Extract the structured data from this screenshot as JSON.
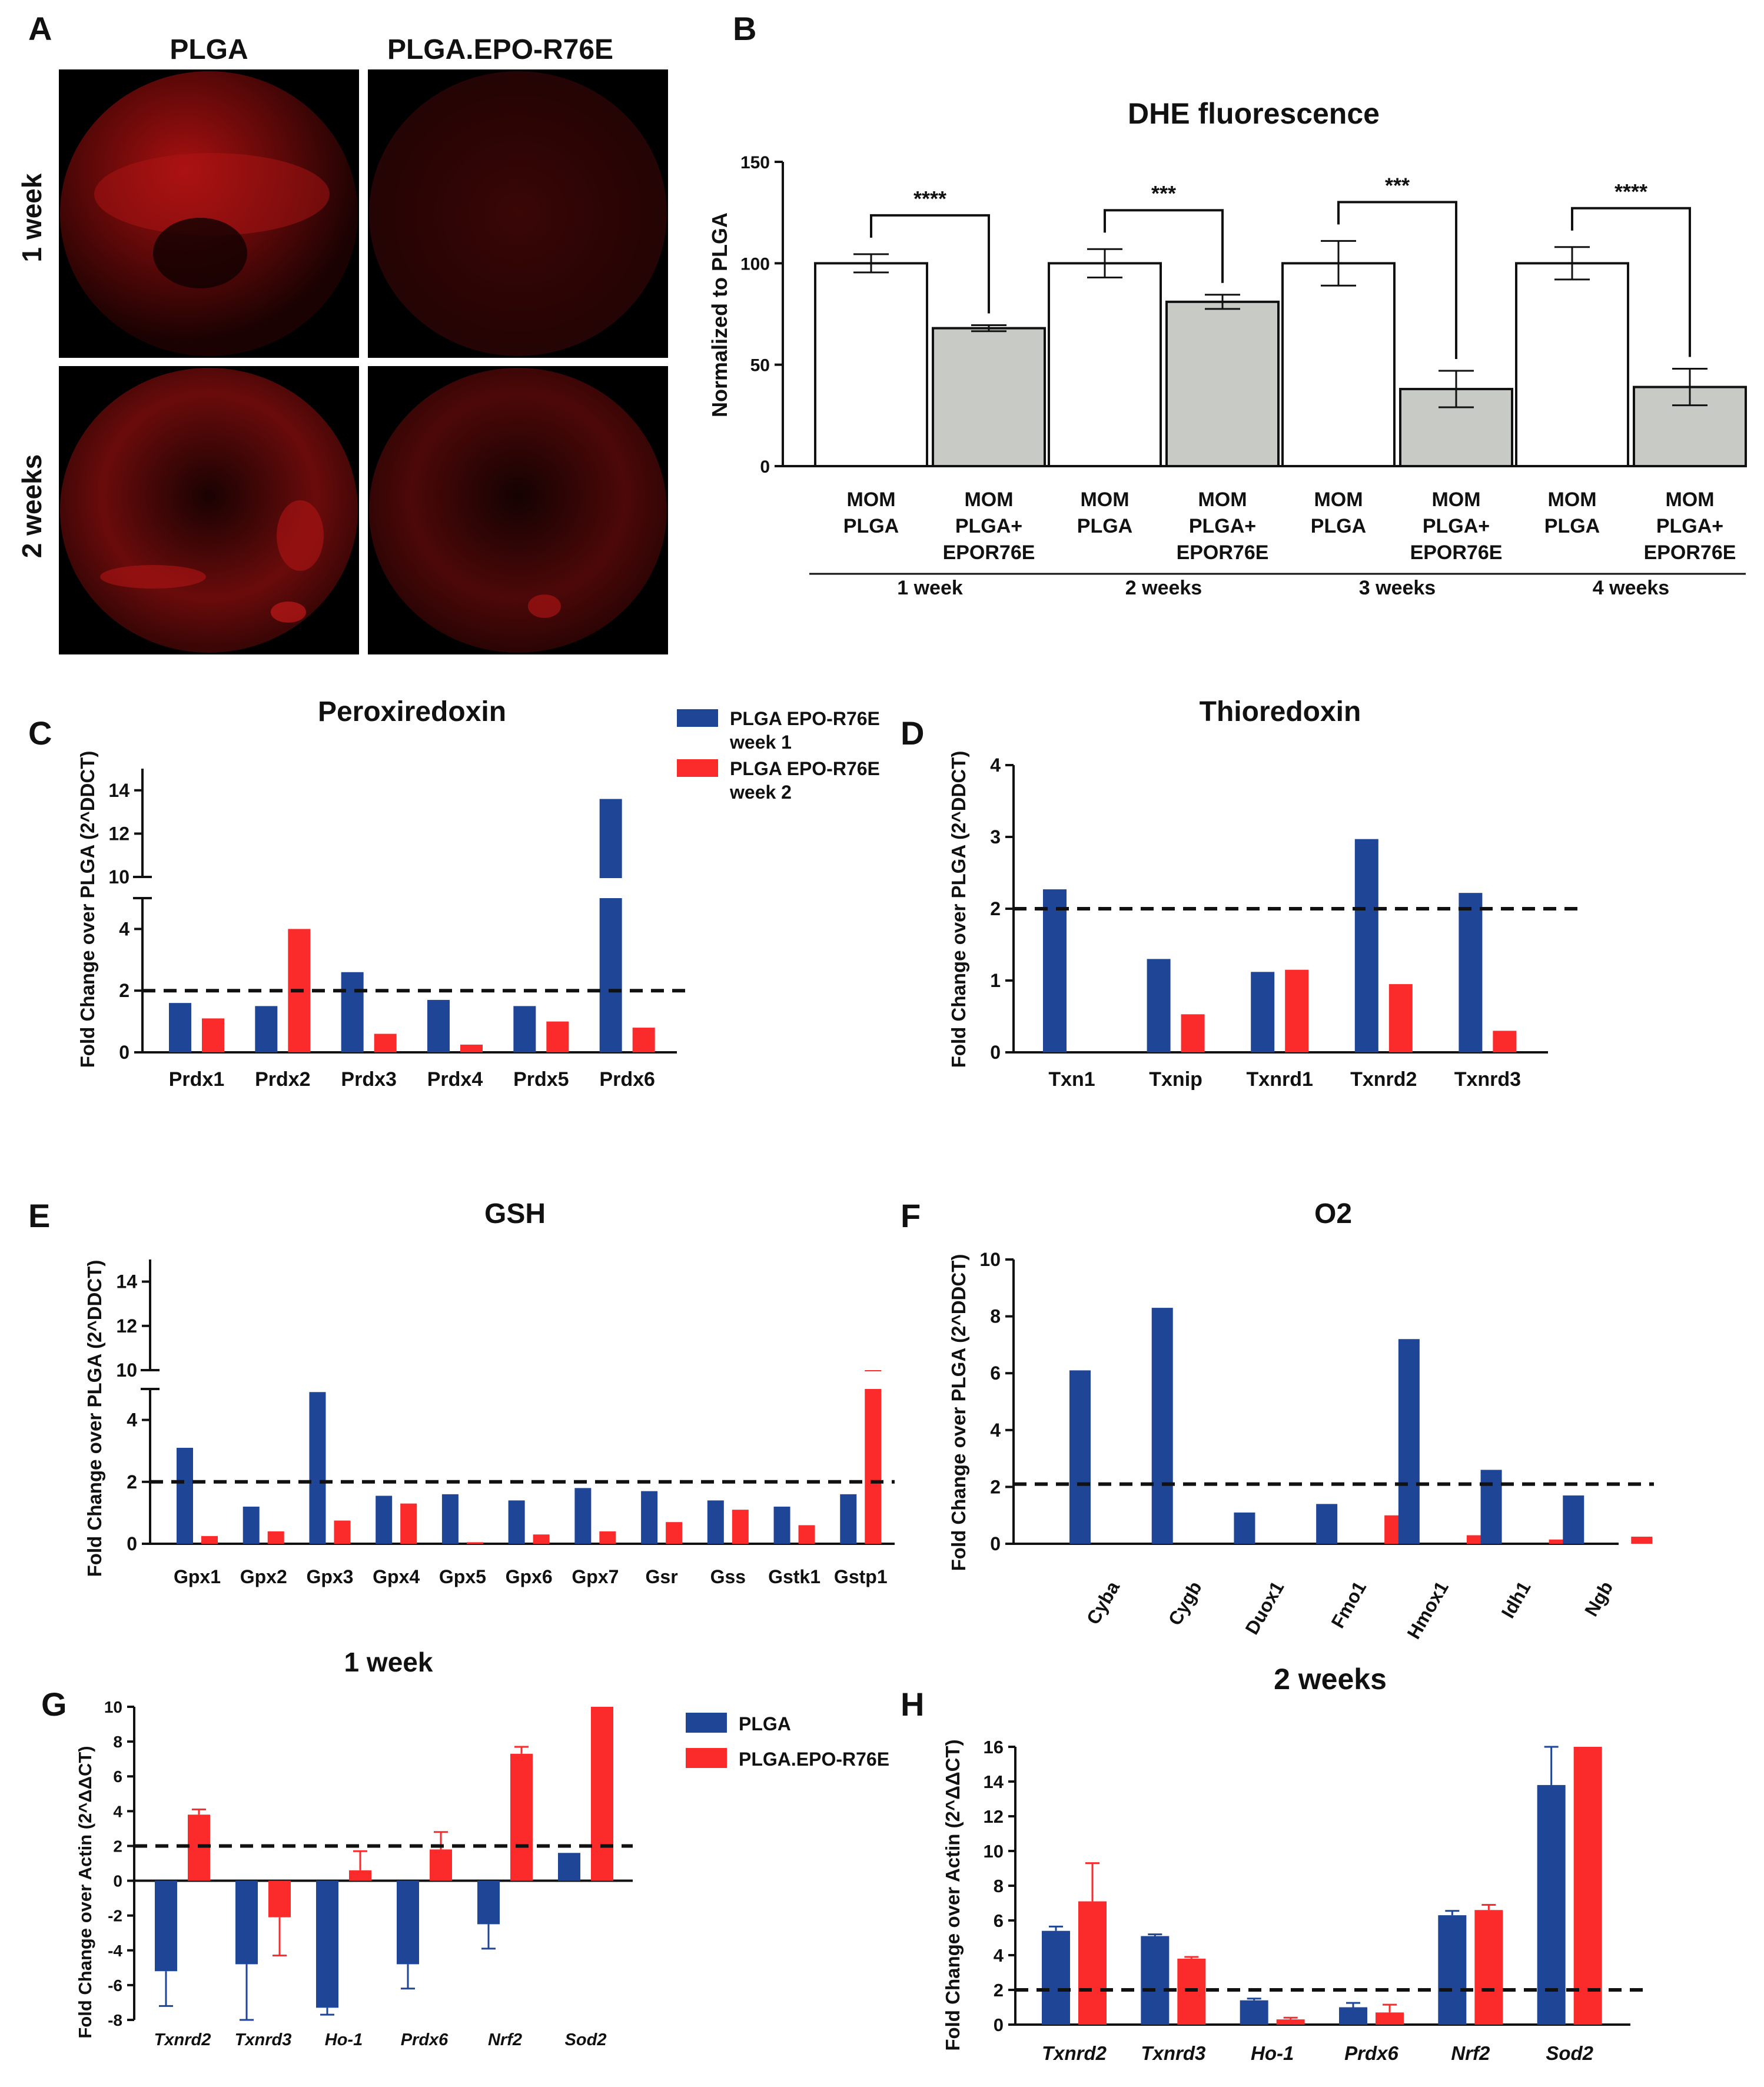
{
  "figure": {
    "panel_letters": [
      "A",
      "B",
      "C",
      "D",
      "E",
      "F",
      "G",
      "H"
    ],
    "colors": {
      "blue": "#1f4597",
      "red": "#fb2b2b",
      "gray": "#c8cac6",
      "white": "#ffffff",
      "dash": "#111111"
    }
  },
  "panel_a": {
    "columns": [
      "PLGA",
      "PLGA.EPO-R76E"
    ],
    "rows": [
      "1 week",
      "2 weeks"
    ]
  },
  "panel_c_legend": [
    {
      "line1": "PLGA EPO-R76E",
      "line2": "week 1"
    },
    {
      "line1": "PLGA EPO-R76E",
      "line2": "week 2"
    }
  ],
  "panel_g_legend": [
    "PLGA",
    "PLGA.EPO-R76E"
  ],
  "chart_data": [
    {
      "id": "B",
      "type": "bar",
      "title": "DHE fluorescence",
      "ylabel": "Normalized to PLGA",
      "ylim": [
        0,
        150
      ],
      "yticks": [
        0,
        50,
        100,
        150
      ],
      "groups": [
        {
          "label": "1 week",
          "sig": "****",
          "bars": [
            {
              "line1": "MOM",
              "line2": "PLGA",
              "value": 100,
              "err": 4.5
            },
            {
              "line1": "MOM",
              "line2": "PLGA+",
              "line3": "EPOR76E",
              "value": 68,
              "err": 1.5
            }
          ]
        },
        {
          "label": "2 weeks",
          "sig": "***",
          "bars": [
            {
              "line1": "MOM",
              "line2": "PLGA",
              "value": 100,
              "err": 7
            },
            {
              "line1": "MOM",
              "line2": "PLGA+",
              "line3": "EPOR76E",
              "value": 81,
              "err": 3.5
            }
          ]
        },
        {
          "label": "3 weeks",
          "sig": "***",
          "bars": [
            {
              "line1": "MOM",
              "line2": "PLGA",
              "value": 100,
              "err": 11
            },
            {
              "line1": "MOM",
              "line2": "PLGA+",
              "line3": "EPOR76E",
              "value": 38,
              "err": 9
            }
          ]
        },
        {
          "label": "4 weeks",
          "sig": "****",
          "bars": [
            {
              "line1": "MOM",
              "line2": "PLGA",
              "value": 100,
              "err": 8
            },
            {
              "line1": "MOM",
              "line2": "PLGA+",
              "line3": "EPOR76E",
              "value": 39,
              "err": 9
            }
          ]
        }
      ]
    },
    {
      "id": "C",
      "type": "bar",
      "title": "Peroxiredoxin",
      "ylabel": "Fold Change over PLGA (2^DDCT)",
      "ylim": [
        0,
        15
      ],
      "broken_axis": [
        5,
        10
      ],
      "yticks_low": [
        0,
        2,
        4
      ],
      "yticks_high": [
        10,
        12,
        14
      ],
      "threshold": 2,
      "categories": [
        "Prdx1",
        "Prdx2",
        "Prdx3",
        "Prdx4",
        "Prdx5",
        "Prdx6"
      ],
      "series": [
        {
          "name": "PLGA EPO-R76E week 1",
          "values": [
            1.6,
            1.5,
            2.6,
            1.7,
            1.5,
            13.6
          ]
        },
        {
          "name": "PLGA EPO-R76E week 2",
          "values": [
            1.1,
            4.0,
            0.6,
            0.25,
            1.0,
            0.8
          ]
        }
      ]
    },
    {
      "id": "D",
      "type": "bar",
      "title": "Thioredoxin",
      "ylabel": "Fold Change over PLGA (2^DDCT)",
      "ylim": [
        0,
        4
      ],
      "yticks": [
        0,
        1,
        2,
        3,
        4
      ],
      "threshold": 2,
      "categories": [
        "Txn1",
        "Txnip",
        "Txnrd1",
        "Txnrd2",
        "Txnrd3"
      ],
      "series": [
        {
          "name": "PLGA EPO-R76E week 1",
          "values": [
            2.27,
            1.3,
            1.12,
            2.97,
            2.22
          ]
        },
        {
          "name": "PLGA EPO-R76E week 2",
          "values": [
            0,
            0.53,
            1.15,
            0.95,
            0.3
          ]
        }
      ]
    },
    {
      "id": "E",
      "type": "bar",
      "title": "GSH",
      "ylabel": "Fold Change over PLGA (2^DDCT)",
      "ylim": [
        0,
        15
      ],
      "broken_axis": [
        5,
        10
      ],
      "yticks_low": [
        0,
        2,
        4
      ],
      "yticks_high": [
        10,
        12,
        14
      ],
      "threshold": 2,
      "categories": [
        "Gpx1",
        "Gpx2",
        "Gpx3",
        "Gpx4",
        "Gpx5",
        "Gpx6",
        "Gpx7",
        "Gsr",
        "Gss",
        "Gstk1",
        "Gstp1"
      ],
      "series": [
        {
          "name": "PLGA EPO-R76E week 1",
          "values": [
            3.1,
            1.2,
            4.9,
            1.55,
            1.6,
            1.4,
            1.8,
            1.7,
            1.4,
            1.2,
            1.6
          ]
        },
        {
          "name": "PLGA EPO-R76E week 2",
          "values": [
            0.25,
            0.4,
            0.75,
            1.3,
            0.05,
            0.3,
            0.4,
            0.7,
            1.1,
            0.6,
            5.1
          ]
        }
      ]
    },
    {
      "id": "F",
      "type": "bar",
      "title": "O2",
      "ylabel": "Fold Change over PLGA (2^DDCT)",
      "ylim": [
        0,
        10
      ],
      "yticks": [
        0,
        2,
        4,
        6,
        8,
        10
      ],
      "threshold": 2.1,
      "categories": [
        "Cyba",
        "Cygb",
        "Duox1",
        "Fmo1",
        "Hmox1",
        "Idh1",
        "Ngb"
      ],
      "series": [
        {
          "name": "PLGA EPO-R76E week 1",
          "values": [
            6.1,
            8.3,
            1.1,
            1.4,
            7.2,
            2.6,
            1.7
          ]
        },
        {
          "name": "PLGA EPO-R76E week 2",
          "values": [
            0,
            0,
            0,
            1.0,
            0.3,
            0.15,
            0.25
          ]
        }
      ]
    },
    {
      "id": "G",
      "type": "bar",
      "title": "1 week",
      "ylabel": "Fold Change over Actin (2^ΔΔCT)",
      "ylim": [
        -8,
        10
      ],
      "yticks": [
        -8,
        -6,
        -4,
        -2,
        0,
        2,
        4,
        6,
        8,
        10
      ],
      "threshold": 2,
      "categories": [
        "Txnrd2",
        "Txnrd3",
        "Ho-1",
        "Prdx6",
        "Nrf2",
        "Sod2"
      ],
      "series": [
        {
          "name": "PLGA",
          "values": [
            -5.2,
            -4.8,
            -7.3,
            -4.8,
            -2.5,
            1.6
          ],
          "errors": [
            2.0,
            3.2,
            0.4,
            1.4,
            1.4,
            0
          ]
        },
        {
          "name": "PLGA.EPO-R76E",
          "values": [
            3.8,
            -2.1,
            0.6,
            1.8,
            7.3,
            10
          ],
          "errors": [
            0.3,
            2.2,
            1.1,
            1.0,
            0.4,
            0
          ]
        }
      ]
    },
    {
      "id": "H",
      "type": "bar",
      "title": "2 weeks",
      "ylabel": "Fold Change over Actin (2^ΔΔCT)",
      "ylim": [
        0,
        16
      ],
      "yticks": [
        0,
        2,
        4,
        6,
        8,
        10,
        12,
        14,
        16
      ],
      "threshold": 2,
      "categories": [
        "Txnrd2",
        "Txnrd3",
        "Ho-1",
        "Prdx6",
        "Nrf2",
        "Sod2"
      ],
      "series": [
        {
          "name": "PLGA",
          "values": [
            5.4,
            5.1,
            1.4,
            1.0,
            6.3,
            13.8
          ],
          "errors": [
            0.25,
            0.1,
            0.1,
            0.25,
            0.25,
            2.2
          ]
        },
        {
          "name": "PLGA.EPO-R76E",
          "values": [
            7.1,
            3.8,
            0.3,
            0.7,
            6.6,
            16
          ],
          "errors": [
            2.2,
            0.1,
            0.1,
            0.45,
            0.3,
            0
          ]
        }
      ]
    }
  ]
}
